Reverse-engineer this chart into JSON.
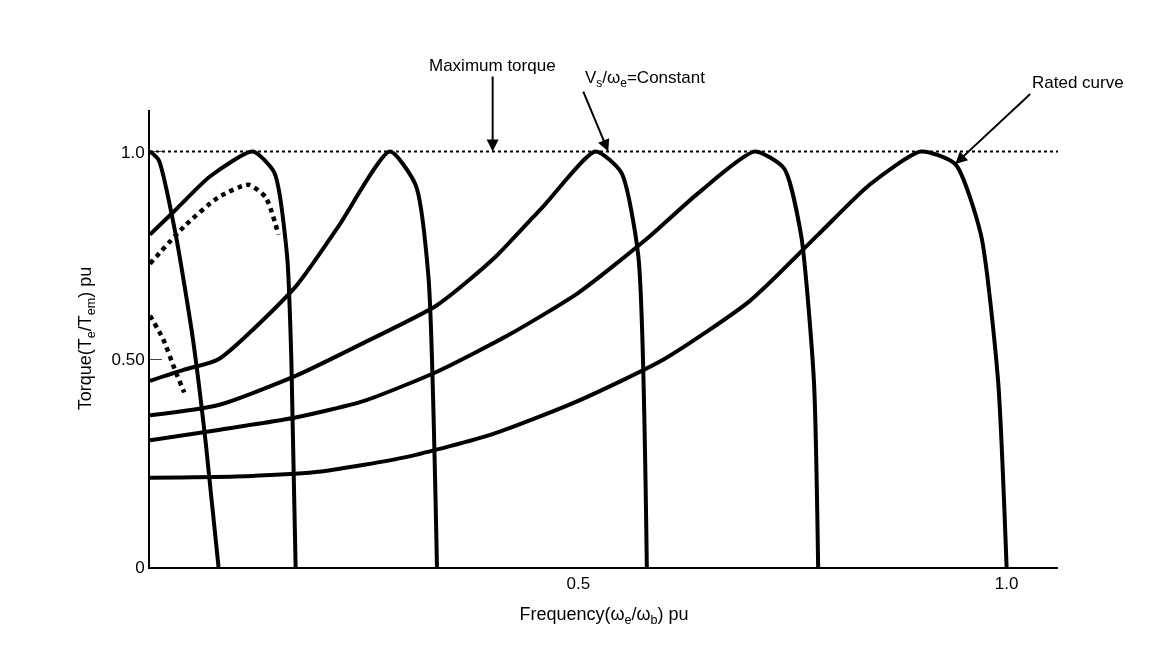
{
  "chart_data": {
    "type": "line",
    "xlabel": "Frequency(ω$_{e}$/ω$_{b}$) pu",
    "ylabel": "Torque(T$_{e}$/T$_{em}$) pu",
    "xlim": [
      0,
      1.06
    ],
    "ylim": [
      0,
      1.1
    ],
    "xticks": [
      {
        "value": 0.5,
        "label": "0.5"
      },
      {
        "value": 1.0,
        "label": "1.0"
      }
    ],
    "yticks": [
      0,
      {
        "value": 0.5,
        "label": "0.50"
      },
      {
        "value": 1.0,
        "label": "1.0"
      }
    ],
    "marker": "none",
    "ref_lines": [
      {
        "axis": "y",
        "value": 1.0,
        "label": null,
        "color": "#000000",
        "line_style": "dotted"
      }
    ],
    "annotations": [
      {
        "text": "Maximum torque",
        "x": 0.4,
        "y": 1.0
      },
      {
        "text": "V$_{s}$/ω$_{e}$=Constant",
        "x": 0.535,
        "y": 1.0
      },
      {
        "text": "Rated curve",
        "x": 0.94,
        "y": 0.97
      }
    ],
    "series": [
      {
        "color": "#000000",
        "line_style": "solid",
        "x": [
          0,
          0.01,
          0.03,
          0.05,
          0.065,
          0.08
        ],
        "values": [
          1.0,
          0.98,
          0.8,
          0.55,
          0.3,
          0
        ]
      },
      {
        "color": "#000000",
        "line_style": "solid",
        "x": [
          0,
          0.03,
          0.07,
          0.12,
          0.145,
          0.16,
          0.165,
          0.17
        ],
        "values": [
          0.8,
          0.86,
          0.94,
          1.0,
          0.95,
          0.75,
          0.5,
          0
        ]
      },
      {
        "color": "#000000",
        "line_style": "solid",
        "x": [
          0,
          0.04,
          0.08,
          0.17,
          0.22,
          0.28,
          0.31,
          0.325,
          0.335
        ],
        "values": [
          0.448,
          0.475,
          0.5,
          0.675,
          0.82,
          1.0,
          0.92,
          0.7,
          0
        ]
      },
      {
        "color": "#000000",
        "line_style": "solid",
        "x": [
          0,
          0.08,
          0.17,
          0.25,
          0.335,
          0.4,
          0.46,
          0.52,
          0.55,
          0.57,
          0.58
        ],
        "values": [
          0.365,
          0.39,
          0.46,
          0.54,
          0.63,
          0.74,
          0.87,
          1.0,
          0.95,
          0.75,
          0
        ]
      },
      {
        "color": "#000000",
        "line_style": "solid",
        "x": [
          0,
          0.08,
          0.17,
          0.25,
          0.335,
          0.42,
          0.5,
          0.58,
          0.64,
          0.706,
          0.74,
          0.76,
          0.775,
          0.78
        ],
        "values": [
          0.305,
          0.33,
          0.36,
          0.4,
          0.47,
          0.56,
          0.66,
          0.79,
          0.9,
          1.0,
          0.96,
          0.8,
          0.45,
          0
        ]
      },
      {
        "color": "#000000",
        "line_style": "solid",
        "x": [
          0,
          0.1,
          0.2,
          0.3,
          0.4,
          0.5,
          0.6,
          0.7,
          0.78,
          0.84,
          0.9,
          0.94,
          0.97,
          0.99,
          1.0
        ],
        "values": [
          0.215,
          0.218,
          0.23,
          0.265,
          0.32,
          0.4,
          0.5,
          0.64,
          0.8,
          0.92,
          1.0,
          0.97,
          0.8,
          0.45,
          0
        ]
      },
      {
        "color": "#000000",
        "line_style": "dotted",
        "x": [
          0,
          0.04,
          0.08,
          0.115,
          0.135,
          0.15
        ],
        "values": [
          0.73,
          0.82,
          0.89,
          0.92,
          0.89,
          0.8
        ]
      },
      {
        "color": "#000000",
        "line_style": "dotted",
        "x": [
          0,
          0.015,
          0.03,
          0.04
        ],
        "values": [
          0.605,
          0.55,
          0.47,
          0.42
        ]
      }
    ]
  }
}
